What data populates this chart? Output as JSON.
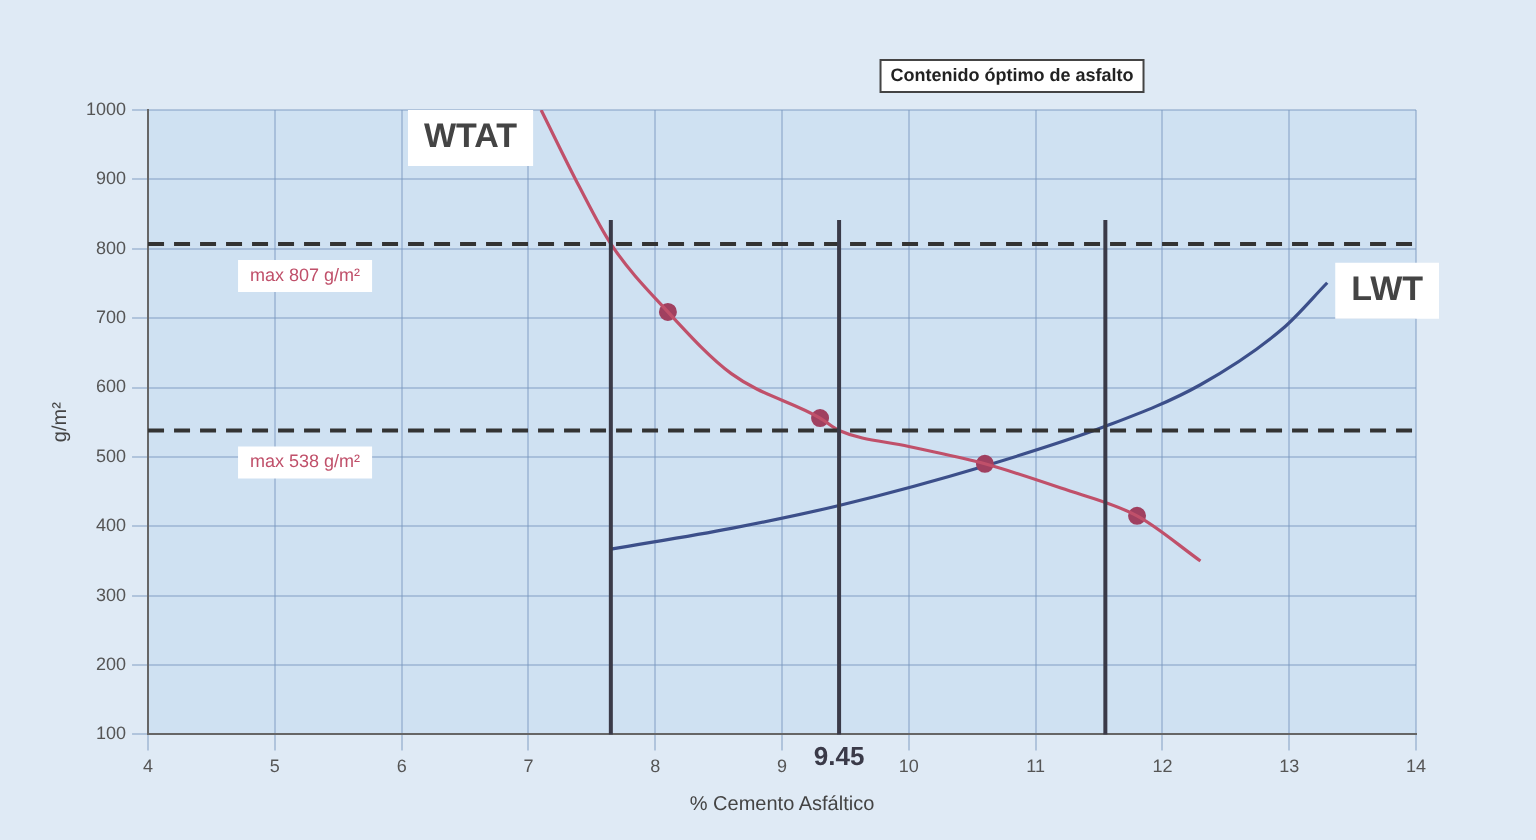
{
  "chart_data": {
    "type": "line",
    "title": "Contenido óptimo de asfalto",
    "xlabel": "% Cemento Asfáltico",
    "ylabel": "g/m²",
    "xlim": [
      4,
      14
    ],
    "xticks": [
      4,
      5,
      6,
      7,
      8,
      9,
      10,
      11,
      12,
      13,
      14
    ],
    "ylim": [
      100,
      1000
    ],
    "yticks": [
      100,
      200,
      300,
      400,
      500,
      600,
      700,
      800,
      900,
      1000
    ],
    "grid": true,
    "legend": false,
    "series": [
      {
        "name": "WTAT",
        "type": "line",
        "color": "#c0506a",
        "marker": "none",
        "x": [
          7.1,
          7.4,
          7.65,
          8.1,
          8.6,
          9.3,
          9.45,
          10.0,
          10.6,
          11.2,
          11.8,
          12.3
        ],
        "values": [
          1000,
          890,
          807,
          709,
          620,
          556,
          538,
          515,
          490,
          455,
          415,
          350
        ]
      },
      {
        "type": "scatter",
        "color": "#a04060",
        "marker": "circle",
        "x": [
          8.1,
          9.3,
          10.6,
          11.8
        ],
        "values": [
          709,
          556,
          490,
          415
        ]
      },
      {
        "name": "LWT",
        "type": "line",
        "color": "#3c4f8a",
        "marker": "none",
        "x": [
          7.65,
          8.6,
          9.45,
          10.6,
          11.55,
          12.3,
          12.95,
          13.3
        ],
        "values": [
          367,
          397,
          430,
          487,
          544,
          604,
          685,
          751
        ]
      }
    ],
    "ref_lines": [
      {
        "axis": "y",
        "value": 807,
        "label": "max 807 g/m²",
        "color": "#333333",
        "line_style": "dashed"
      },
      {
        "axis": "y",
        "value": 538,
        "label": "max 538 g/m²",
        "color": "#333333",
        "line_style": "dashed"
      },
      {
        "axis": "x",
        "value": 7.65,
        "color": "#3a3a48",
        "line_style": "solid"
      },
      {
        "axis": "x",
        "value": 9.45,
        "label": "9.45",
        "color": "#3a3a48",
        "line_style": "solid"
      },
      {
        "axis": "x",
        "value": 11.55,
        "color": "#3a3a48",
        "line_style": "solid"
      }
    ]
  }
}
